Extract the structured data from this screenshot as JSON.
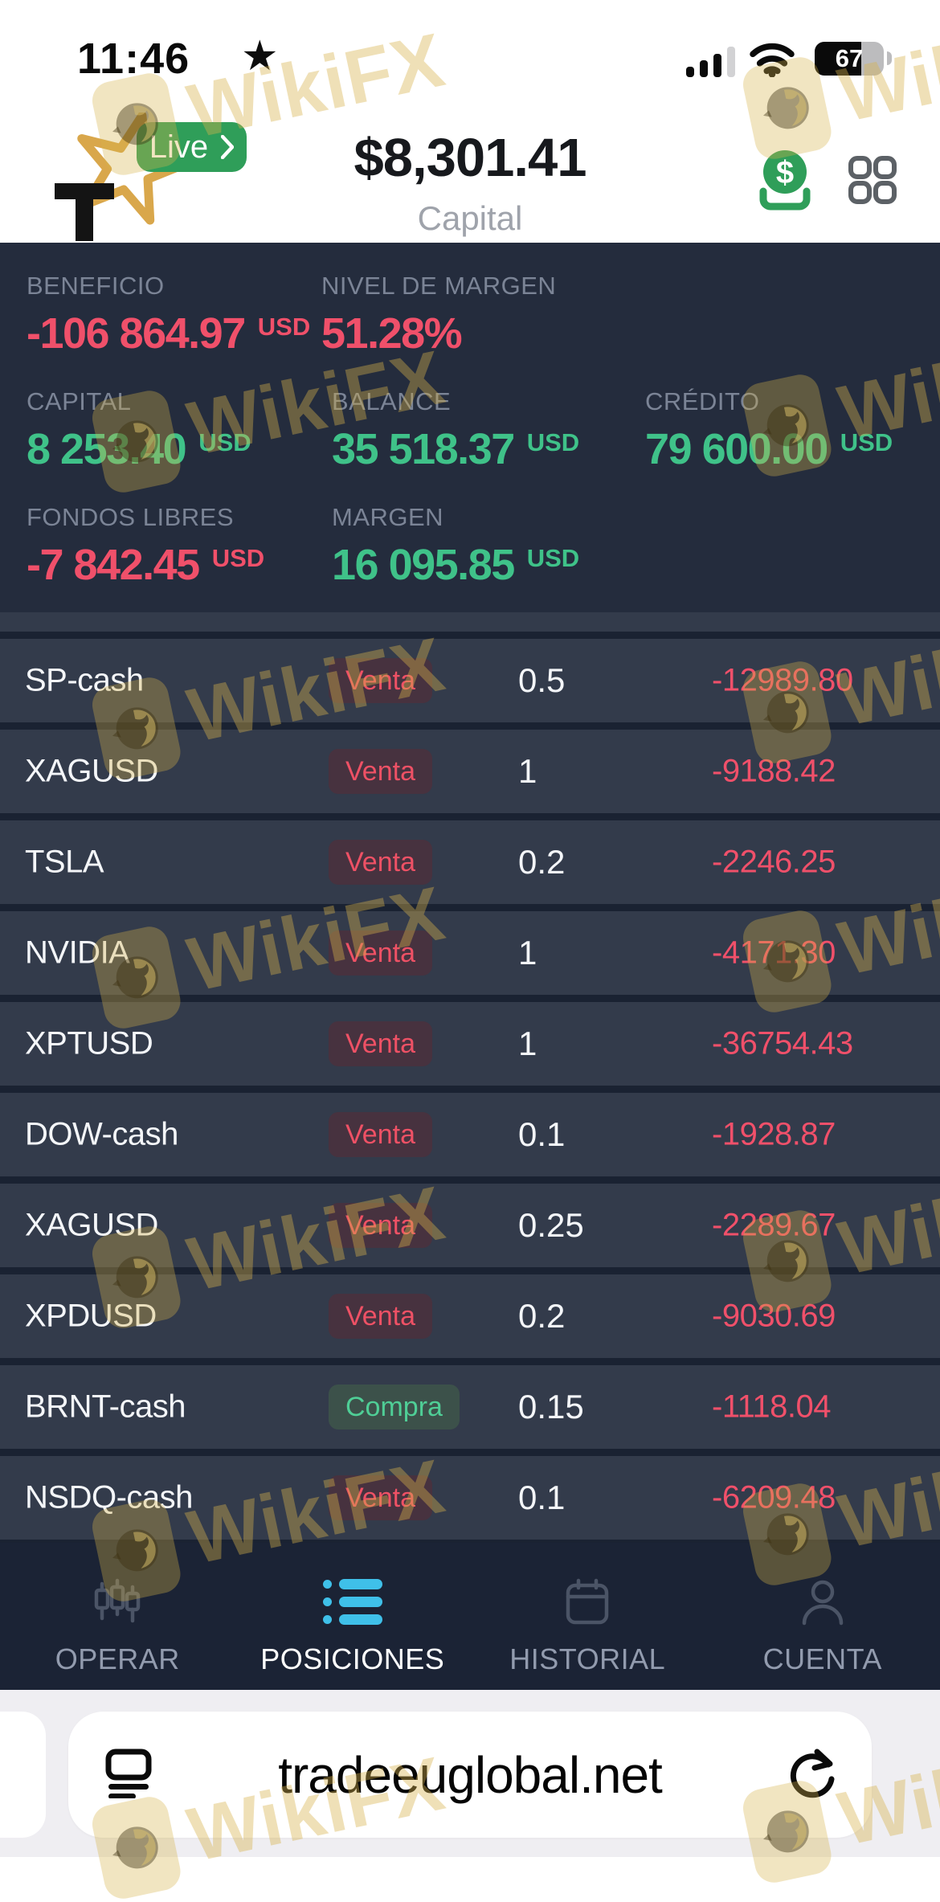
{
  "app": {
    "watermark_text": "WikiFX"
  },
  "status_bar": {
    "time": "11:46",
    "battery_percent": "67"
  },
  "header": {
    "live_button": "Live",
    "capital_amount": "$8,301.41",
    "capital_caption": "Capital"
  },
  "stats": {
    "beneficio": {
      "label": "BENEFICIO",
      "value": "-106 864.97",
      "unit": "USD"
    },
    "nivel_margen": {
      "label": "NIVEL DE MARGEN",
      "value": "51.28%",
      "unit": ""
    },
    "capital": {
      "label": "CAPITAL",
      "value": "8 253.40",
      "unit": "USD"
    },
    "balance": {
      "label": "BALANCE",
      "value": "35 518.37",
      "unit": "USD"
    },
    "credito": {
      "label": "CRÉDITO",
      "value": "79 600.00",
      "unit": "USD"
    },
    "fondos_libres": {
      "label": "FONDOS LIBRES",
      "value": "-7 842.45",
      "unit": "USD"
    },
    "margen": {
      "label": "MARGEN",
      "value": "16 095.85",
      "unit": "USD"
    }
  },
  "positions": [
    {
      "symbol": "SP-cash",
      "side": "Venta",
      "side_type": "sell",
      "volume": "0.5",
      "pl": "-12989.80"
    },
    {
      "symbol": "XAGUSD",
      "side": "Venta",
      "side_type": "sell",
      "volume": "1",
      "pl": "-9188.42"
    },
    {
      "symbol": "TSLA",
      "side": "Venta",
      "side_type": "sell",
      "volume": "0.2",
      "pl": "-2246.25"
    },
    {
      "symbol": "NVIDIA",
      "side": "Venta",
      "side_type": "sell",
      "volume": "1",
      "pl": "-4171.30"
    },
    {
      "symbol": "XPTUSD",
      "side": "Venta",
      "side_type": "sell",
      "volume": "1",
      "pl": "-36754.43"
    },
    {
      "symbol": "DOW-cash",
      "side": "Venta",
      "side_type": "sell",
      "volume": "0.1",
      "pl": "-1928.87"
    },
    {
      "symbol": "XAGUSD",
      "side": "Venta",
      "side_type": "sell",
      "volume": "0.25",
      "pl": "-2289.67"
    },
    {
      "symbol": "XPDUSD",
      "side": "Venta",
      "side_type": "sell",
      "volume": "0.2",
      "pl": "-9030.69"
    },
    {
      "symbol": "BRNT-cash",
      "side": "Compra",
      "side_type": "buy",
      "volume": "0.15",
      "pl": "-1118.04"
    },
    {
      "symbol": "NSDQ-cash",
      "side": "Venta",
      "side_type": "sell",
      "volume": "0.1",
      "pl": "-6209.48"
    }
  ],
  "nav": {
    "operar": "OPERAR",
    "posiciones": "POSICIONES",
    "historial": "HISTORIAL",
    "cuenta": "CUENTA"
  },
  "browser": {
    "url": "tradeeuglobal.net"
  },
  "icons": {
    "favorites": "star-icon",
    "deposit": "deposit-dollar-icon",
    "menu": "grid-menu-icon",
    "operar": "candlestick-chart-icon",
    "posiciones": "list-icon",
    "historial": "calendar-icon",
    "cuenta": "user-icon",
    "url_left": "reader-icon",
    "url_right": "reload-icon"
  },
  "colors": {
    "stats_bg": "#242c3d",
    "row_bg": "#333b4b",
    "nav_bg": "#1b2335",
    "negative": "#f0506a",
    "positive": "#3fc289",
    "accent_blue": "#3fc0e9",
    "live_green": "#2f9e59",
    "logo_gold": "#d9a74b"
  }
}
